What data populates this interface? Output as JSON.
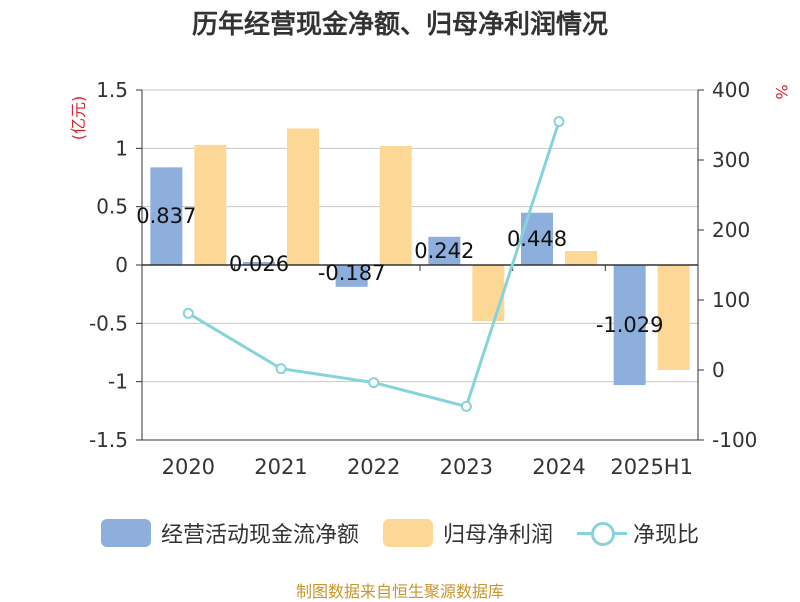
{
  "chart_data": {
    "type": "bar",
    "title": "历年经营现金净额、归母净利润情况",
    "categories": [
      "2020",
      "2021",
      "2022",
      "2023",
      "2024",
      "2025H1"
    ],
    "series": [
      {
        "name": "经营活动现金流净额",
        "type": "bar",
        "axis": "left",
        "color": "#8eaedb",
        "values": [
          0.837,
          0.026,
          -0.187,
          0.242,
          0.448,
          -1.029
        ],
        "labels": [
          "0.837",
          "0.026",
          "-0.187",
          "0.242",
          "0.448",
          "-1.029"
        ]
      },
      {
        "name": "归母净利润",
        "type": "bar",
        "axis": "left",
        "color": "#fdd795",
        "values": [
          1.03,
          1.17,
          1.02,
          -0.48,
          0.12,
          -0.9
        ]
      },
      {
        "name": "净现比",
        "type": "line",
        "axis": "right",
        "color": "#86d3d9",
        "values": [
          81,
          2,
          -18,
          -52,
          355,
          null
        ]
      }
    ],
    "left_axis": {
      "label": "(亿元)",
      "min": -1.5,
      "max": 1.5,
      "ticks": [
        1.5,
        1,
        0.5,
        0,
        -0.5,
        -1,
        -1.5
      ]
    },
    "right_axis": {
      "label": "%",
      "min": -100,
      "max": 400,
      "ticks": [
        400,
        300,
        200,
        100,
        0,
        -100
      ]
    },
    "grid": true,
    "legend_position": "bottom"
  },
  "source": "制图数据来自恒生聚源数据库"
}
